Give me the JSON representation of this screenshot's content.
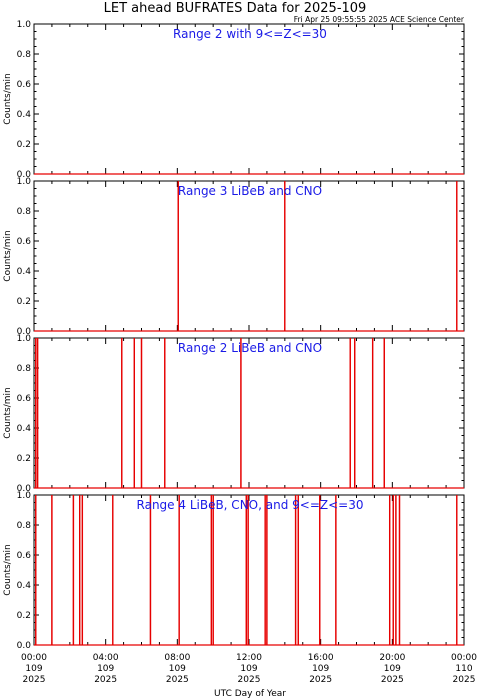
{
  "title": "LET ahead BUFRATES Data for 2025-109",
  "timestamp": "Fri Apr 25 09:55:55 2025 ACE Science Center",
  "chart_data": {
    "type": "line",
    "xlabel": "UTC Day of Year",
    "xlim": [
      0,
      24
    ],
    "x_unit": "hours",
    "x_ticks": [
      {
        "time": "00:00",
        "day": "109",
        "year": "2025"
      },
      {
        "time": "04:00",
        "day": "109",
        "year": "2025"
      },
      {
        "time": "08:00",
        "day": "109",
        "year": "2025"
      },
      {
        "time": "12:00",
        "day": "109",
        "year": "2025"
      },
      {
        "time": "16:00",
        "day": "109",
        "year": "2025"
      },
      {
        "time": "20:00",
        "day": "109",
        "year": "2025"
      },
      {
        "time": "00:00",
        "day": "110",
        "year": "2025"
      }
    ],
    "ylabel": "Counts/min",
    "ylim": [
      0,
      1
    ],
    "y_ticks": [
      "0.0",
      "0.2",
      "0.4",
      "0.6",
      "0.8",
      "1.0"
    ],
    "line_color": "#e60000",
    "label_color": "#1a1ae6",
    "panels": [
      {
        "label": "Range 2 with 9<=Z<=30",
        "spikes": []
      },
      {
        "label": "Range 3 LiBeB and CNO",
        "spikes": [
          8.05,
          14.0,
          23.6
        ]
      },
      {
        "label": "Range 2 LiBeB and CNO",
        "spikes": [
          0.1,
          0.2,
          4.9,
          5.6,
          6.0,
          7.3,
          11.55,
          17.65,
          17.9,
          18.9,
          19.55
        ]
      },
      {
        "label": "Range 4 LiBeB, CNO, and 9<=Z<=30",
        "spikes": [
          0.1,
          1.0,
          2.2,
          2.55,
          2.7,
          4.4,
          6.5,
          8.1,
          9.9,
          10.0,
          11.85,
          11.95,
          12.9,
          13.0,
          14.6,
          14.75,
          15.95,
          16.85,
          19.85,
          20.05,
          20.2,
          20.4,
          23.6
        ]
      }
    ]
  }
}
